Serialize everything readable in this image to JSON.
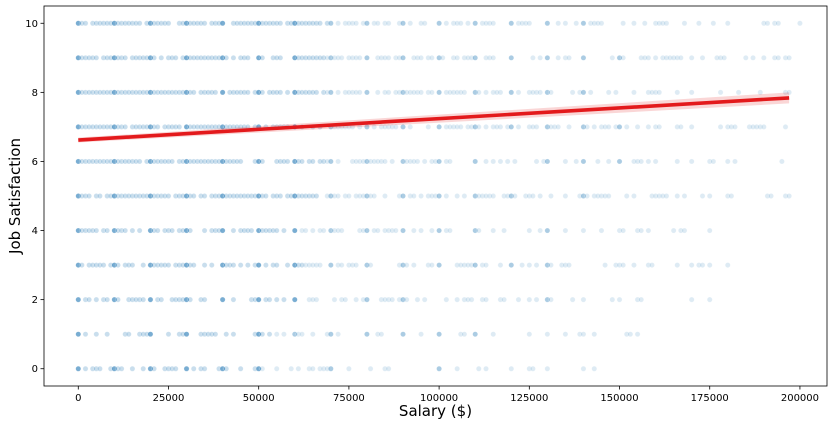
{
  "chart_data": {
    "type": "scatter",
    "title": "",
    "xlabel": "Salary ($)",
    "ylabel": "Job Satisfaction",
    "xlim": [
      -9500,
      207500
    ],
    "ylim": [
      -0.5,
      10.5
    ],
    "xticks": [
      0,
      25000,
      50000,
      75000,
      100000,
      125000,
      150000,
      175000,
      200000
    ],
    "yticks": [
      0,
      2,
      4,
      6,
      8,
      10
    ],
    "grid": false,
    "point_color": "#1f77b4",
    "point_alpha": 0.15,
    "levels": [
      {
        "y": 10,
        "x_max": 200000,
        "density": 0.92
      },
      {
        "y": 9,
        "x_max": 197000,
        "density": 0.95
      },
      {
        "y": 8,
        "x_max": 197000,
        "density": 1.0
      },
      {
        "y": 7,
        "x_max": 196000,
        "density": 1.0
      },
      {
        "y": 6,
        "x_max": 195000,
        "density": 0.95
      },
      {
        "y": 5,
        "x_max": 197000,
        "density": 0.9
      },
      {
        "y": 4,
        "x_max": 175000,
        "density": 0.75
      },
      {
        "y": 3,
        "x_max": 180000,
        "density": 0.8
      },
      {
        "y": 2,
        "x_max": 175000,
        "density": 0.6
      },
      {
        "y": 1,
        "x_max": 155000,
        "density": 0.45
      },
      {
        "y": 0,
        "x_max": 143000,
        "density": 0.45
      }
    ],
    "regression": {
      "color": "#e31a1c",
      "x_start": 0,
      "x_end": 197000,
      "y_start": 6.62,
      "y_end": 7.84
    }
  }
}
